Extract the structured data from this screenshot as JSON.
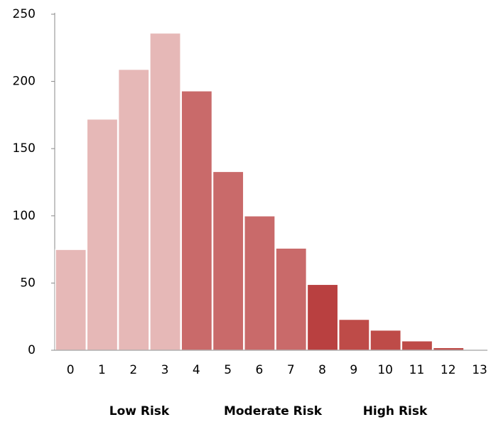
{
  "chart_data": {
    "type": "bar",
    "categories": [
      "0",
      "1",
      "2",
      "3",
      "4",
      "5",
      "6",
      "7",
      "8",
      "9",
      "10",
      "11",
      "12",
      "13"
    ],
    "values": [
      75,
      172,
      209,
      236,
      193,
      133,
      100,
      76,
      49,
      23,
      15,
      7,
      2,
      0
    ],
    "colors": [
      "#e6b8b7",
      "#e6b8b7",
      "#e6b8b7",
      "#e6b8b7",
      "#c96a6a",
      "#c96a6a",
      "#c96a6a",
      "#c96a6a",
      "#b94040",
      "#be4b48",
      "#be4b48",
      "#be4b48",
      "#be4b48",
      "#be4b48"
    ],
    "ylim": [
      0,
      250
    ],
    "yticks": [
      0,
      50,
      100,
      150,
      200,
      250
    ],
    "group_labels": [
      "Low Risk",
      "Moderate Risk",
      "High Risk"
    ]
  }
}
